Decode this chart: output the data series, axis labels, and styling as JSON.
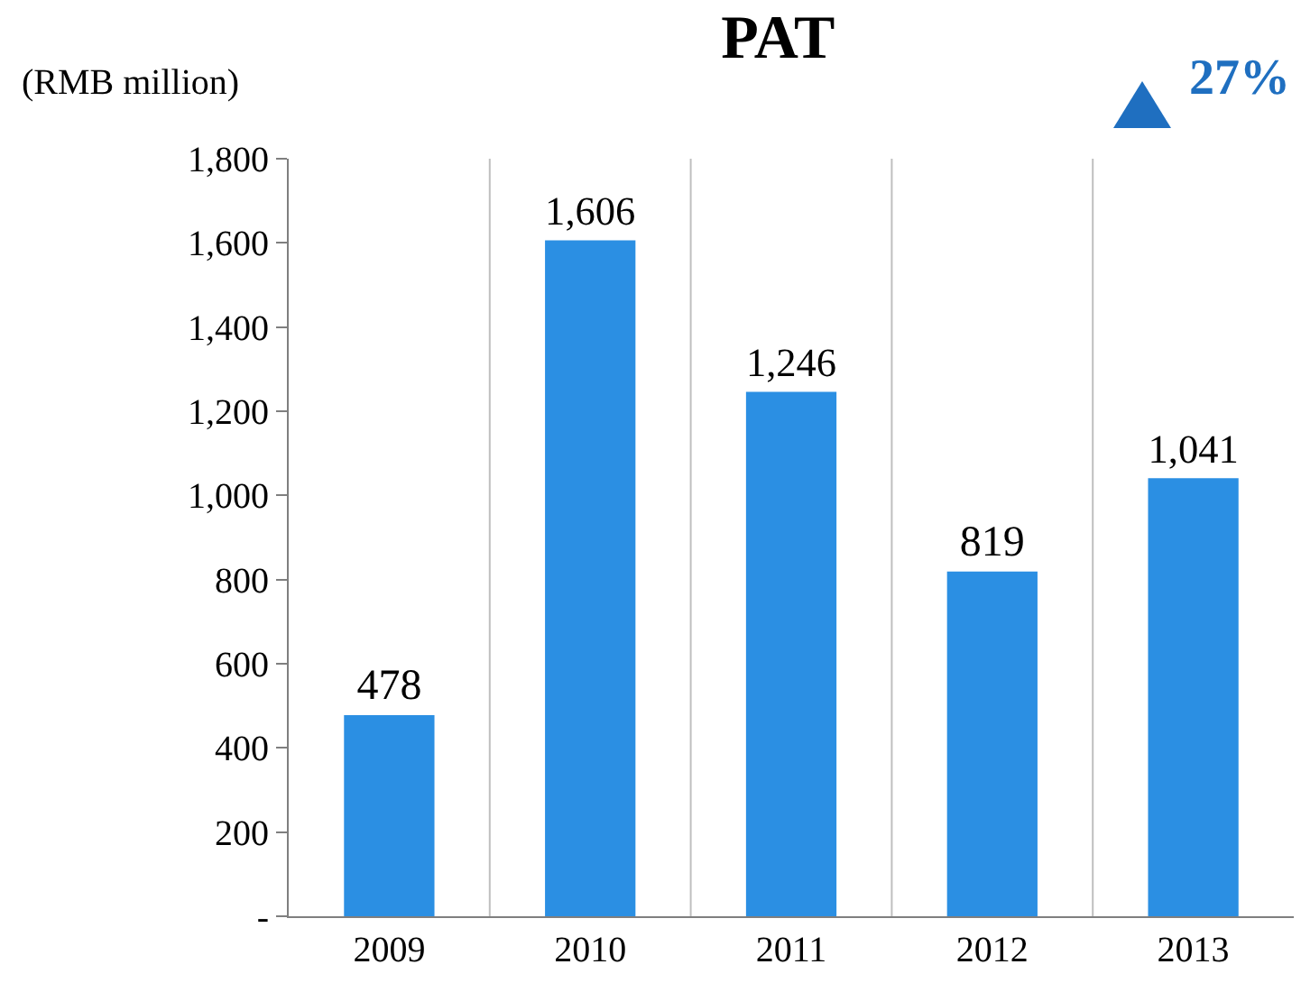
{
  "chart_data": {
    "type": "bar",
    "title": "PAT",
    "ylabel": "(RMB million)",
    "categories": [
      "2009",
      "2010",
      "2011",
      "2012",
      "2013"
    ],
    "values": [
      478,
      1606,
      1246,
      819,
      1041
    ],
    "color": "#2b8fe3",
    "ylim": [
      0,
      1800
    ],
    "yticks": [
      {
        "value": 0,
        "label": "-"
      },
      200,
      400,
      600,
      800,
      {
        "value": 1000,
        "label": "1,000"
      },
      {
        "value": 1200,
        "label": "1,200"
      },
      {
        "value": 1400,
        "label": "1,400"
      },
      {
        "value": 1600,
        "label": "1,600"
      },
      {
        "value": 1800,
        "label": "1,800"
      }
    ],
    "grid": "x",
    "value_labels": [
      "478",
      "1,606",
      "1,246",
      "819",
      "1,041"
    ],
    "annotations": [
      "27%"
    ]
  }
}
